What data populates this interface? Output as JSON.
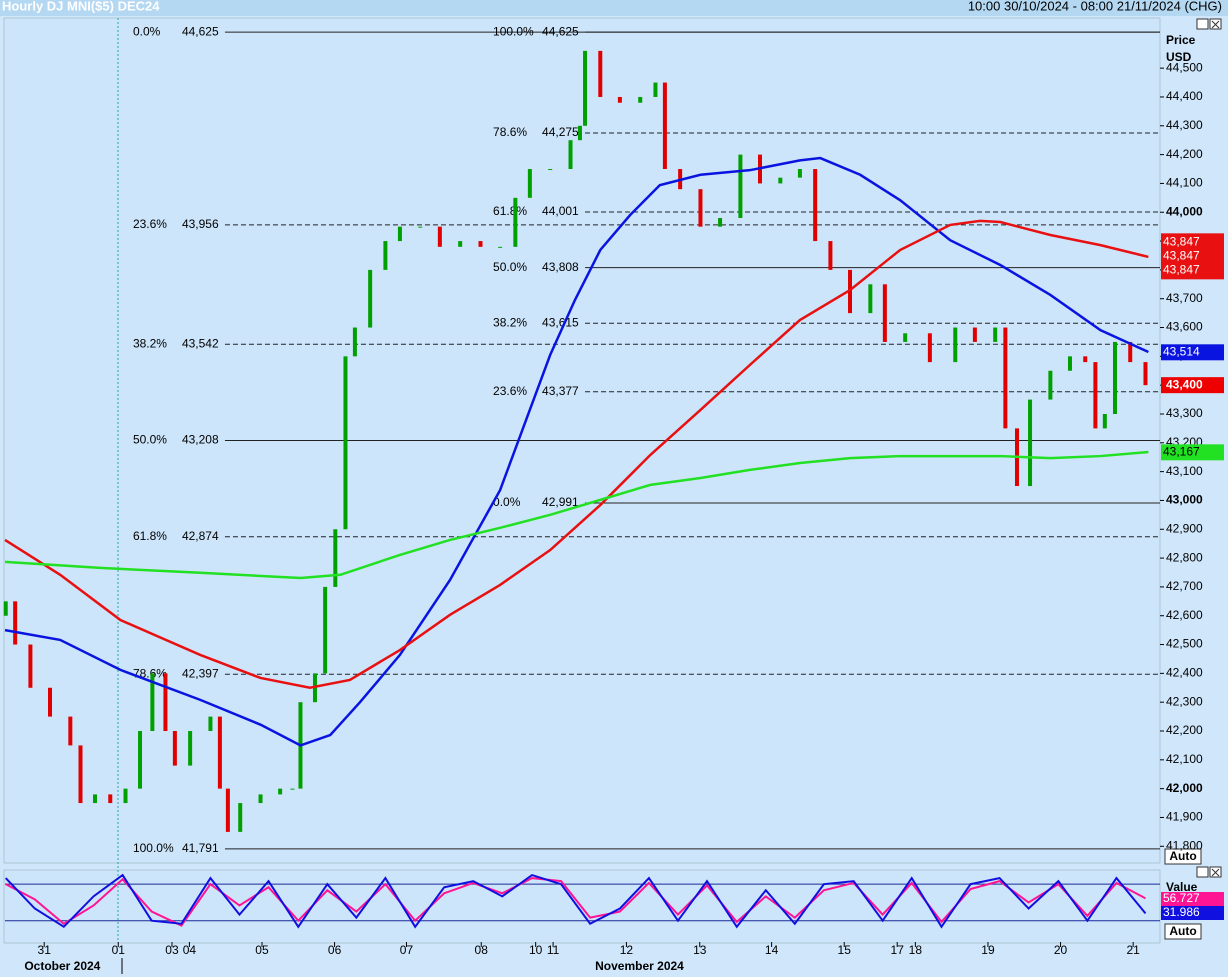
{
  "chart_data": [
    {
      "type": "candlestick",
      "title": "Hourly DJ MNI($5) DEC24",
      "subtitle": "10:00 30/10/2024 - 08:00 21/11/2024 (CHG)",
      "y_label": "Price",
      "y_unit": "USD",
      "auto_label": "Auto",
      "up_color": "#00a000",
      "down_color": "#e00000",
      "xlim": [
        -0.54,
        15.37
      ],
      "ylim": [
        41742,
        44674
      ],
      "xticks": [
        {
          "value": 0,
          "label": "31"
        },
        {
          "value": 1.02,
          "label": "01"
        },
        {
          "value": 1.76,
          "label": "03"
        },
        {
          "value": 2.0,
          "label": "04"
        },
        {
          "value": 3.0,
          "label": "05"
        },
        {
          "value": 4.0,
          "label": "06"
        },
        {
          "value": 4.99,
          "label": "07"
        },
        {
          "value": 6.02,
          "label": "08"
        },
        {
          "value": 6.77,
          "label": "10"
        },
        {
          "value": 7.01,
          "label": "11"
        },
        {
          "value": 8.02,
          "label": "12"
        },
        {
          "value": 9.03,
          "label": "13"
        },
        {
          "value": 10.02,
          "label": "14"
        },
        {
          "value": 11.02,
          "label": "15"
        },
        {
          "value": 11.75,
          "label": "17"
        },
        {
          "value": 12.0,
          "label": "18"
        },
        {
          "value": 13.0,
          "label": "19"
        },
        {
          "value": 14.0,
          "label": "20"
        },
        {
          "value": 15.0,
          "label": "21"
        }
      ],
      "month_ticks": [
        {
          "value": 0.25,
          "label": "October 2024"
        },
        {
          "value": 8.2,
          "label": "November 2024"
        }
      ],
      "yticks": [
        {
          "value": 41800,
          "label": "41,800"
        },
        {
          "value": 41900,
          "label": "41,900"
        },
        {
          "value": 42000,
          "label": "42,000"
        },
        {
          "value": 42100,
          "label": "42,100"
        },
        {
          "value": 42200,
          "label": "42,200"
        },
        {
          "value": 42300,
          "label": "42,300"
        },
        {
          "value": 42400,
          "label": "42,400"
        },
        {
          "value": 42500,
          "label": "42,500"
        },
        {
          "value": 42600,
          "label": "42,600"
        },
        {
          "value": 42700,
          "label": "42,700"
        },
        {
          "value": 42800,
          "label": "42,800"
        },
        {
          "value": 42900,
          "label": "42,900"
        },
        {
          "value": 43000,
          "label": "43,000"
        },
        {
          "value": 43100,
          "label": "43,100"
        },
        {
          "value": 43200,
          "label": "43,200"
        },
        {
          "value": 43300,
          "label": "43,300"
        },
        {
          "value": 43400,
          "label": "43,400"
        },
        {
          "value": 43500,
          "label": "43,500"
        },
        {
          "value": 43600,
          "label": "43,600"
        },
        {
          "value": 43700,
          "label": "43,700"
        },
        {
          "value": 43800,
          "label": "43,800"
        },
        {
          "value": 43900,
          "label": "43,900"
        },
        {
          "value": 44000,
          "label": "44,000"
        },
        {
          "value": 44100,
          "label": "44,100"
        },
        {
          "value": 44200,
          "label": "44,200"
        },
        {
          "value": 44300,
          "label": "44,300"
        },
        {
          "value": 44400,
          "label": "44,400"
        },
        {
          "value": 44500,
          "label": "44,500"
        }
      ],
      "x": [
        -0.53,
        -0.4,
        -0.19,
        0.08,
        0.36,
        0.5,
        0.7,
        0.91,
        1.12,
        1.32,
        1.49,
        1.67,
        1.8,
        2.01,
        2.29,
        2.42,
        2.53,
        2.7,
        2.98,
        3.25,
        3.42,
        3.53,
        3.73,
        3.87,
        4.01,
        4.15,
        4.28,
        4.49,
        4.7,
        4.9,
        5.18,
        5.45,
        5.73,
        6.01,
        6.28,
        6.49,
        6.69,
        6.97,
        7.25,
        7.38,
        7.45,
        7.66,
        7.93,
        8.21,
        8.42,
        8.55,
        8.76,
        9.04,
        9.31,
        9.59,
        9.86,
        10.14,
        10.41,
        10.62,
        10.83,
        11.1,
        11.38,
        11.58,
        11.86,
        12.2,
        12.55,
        12.82,
        13.1,
        13.24,
        13.4,
        13.58,
        13.86,
        14.13,
        14.34,
        14.48,
        14.61,
        14.75,
        14.96,
        15.17
      ],
      "open": [
        42600,
        42650,
        42500,
        42350,
        42250,
        42150,
        41950,
        41980,
        41950,
        42000,
        42200,
        42400,
        42200,
        42080,
        42200,
        42250,
        42000,
        41850,
        41950,
        41980,
        42000,
        42000,
        42300,
        42400,
        42700,
        42900,
        43500,
        43600,
        43800,
        43900,
        43950,
        43950,
        43880,
        43900,
        43880,
        43880,
        44050,
        44150,
        44150,
        44250,
        44300,
        44560,
        44400,
        44380,
        44400,
        44450,
        44150,
        44080,
        43950,
        43980,
        44200,
        44100,
        44120,
        44150,
        43900,
        43800,
        43650,
        43750,
        43550,
        43580,
        43480,
        43600,
        43550,
        43600,
        43250,
        43050,
        43350,
        43450,
        43500,
        43480,
        43250,
        43300,
        43550,
        43480
      ],
      "close": [
        42650,
        42500,
        42350,
        42250,
        42150,
        41950,
        41980,
        41950,
        42000,
        42200,
        42400,
        42200,
        42080,
        42200,
        42250,
        42000,
        41850,
        41950,
        41980,
        42000,
        42000,
        42300,
        42400,
        42700,
        42900,
        43500,
        43600,
        43800,
        43900,
        43950,
        43950,
        43880,
        43900,
        43880,
        43880,
        44050,
        44150,
        44150,
        44250,
        44300,
        44560,
        44400,
        44380,
        44400,
        44450,
        44150,
        44080,
        43950,
        43980,
        44200,
        44100,
        44120,
        44150,
        43900,
        43800,
        43650,
        43750,
        43550,
        43580,
        43480,
        43600,
        43550,
        43600,
        43250,
        43050,
        43350,
        43450,
        43500,
        43480,
        43250,
        43300,
        43550,
        43480,
        43400
      ],
      "moving_averages": [
        {
          "color": "#0a14e0",
          "x": [
            -0.54,
            0.22,
            1.05,
            2.15,
            2.98,
            3.53,
            3.94,
            4.35,
            4.9,
            5.59,
            6.28,
            6.97,
            7.31,
            7.66,
            8.07,
            8.48,
            9.04,
            9.72,
            10.41,
            10.69,
            11.24,
            11.79,
            12.48,
            13.17,
            13.86,
            14.55,
            15.21
          ],
          "values": [
            42550,
            42516,
            42412,
            42308,
            42222,
            42150,
            42186,
            42300,
            42464,
            42724,
            43036,
            43505,
            43695,
            43869,
            43990,
            44094,
            44130,
            44146,
            44180,
            44188,
            44130,
            44042,
            43903,
            43817,
            43713,
            43591,
            43515
          ],
          "last": {
            "value": 43514,
            "label": "43,514"
          }
        },
        {
          "color": "#e81010",
          "x": [
            -0.54,
            0.22,
            1.05,
            2.15,
            2.98,
            3.66,
            4.21,
            4.9,
            5.59,
            6.28,
            6.97,
            7.66,
            8.35,
            9.04,
            9.72,
            10.41,
            11.1,
            11.79,
            12.48,
            12.89,
            13.17,
            13.86,
            14.55,
            15.21
          ],
          "values": [
            42863,
            42742,
            42585,
            42464,
            42384,
            42350,
            42377,
            42481,
            42603,
            42707,
            42828,
            42984,
            43158,
            43314,
            43470,
            43626,
            43730,
            43869,
            43956,
            43970,
            43966,
            43921,
            43886,
            43845
          ],
          "last": {
            "value": 43847,
            "label": "43,847"
          }
        },
        {
          "color": "#22e022",
          "x": [
            -0.54,
            0.77,
            2.15,
            3.53,
            4.08,
            4.9,
            5.59,
            6.28,
            6.97,
            7.66,
            8.35,
            9.04,
            9.72,
            10.41,
            11.1,
            11.79,
            13.17,
            13.86,
            14.55,
            15.21
          ],
          "values": [
            42787,
            42766,
            42749,
            42731,
            42742,
            42811,
            42863,
            42905,
            42950,
            43002,
            43054,
            43078,
            43106,
            43130,
            43147,
            43154,
            43154,
            43147,
            43154,
            43168
          ],
          "last": {
            "value": 43167,
            "label": "43,167"
          }
        }
      ],
      "fib_sets": [
        {
          "start_x": 2.49,
          "levels": [
            {
              "percent": "0.0%",
              "value": 44625,
              "label": "44,625",
              "style": "solid"
            },
            {
              "percent": "23.6%",
              "value": 43956,
              "label": "43,956",
              "style": "dashed"
            },
            {
              "percent": "38.2%",
              "value": 43542,
              "label": "43,542",
              "style": "dashed"
            },
            {
              "percent": "50.0%",
              "value": 43208,
              "label": "43,208",
              "style": "solid"
            },
            {
              "percent": "61.8%",
              "value": 42874,
              "label": "42,874",
              "style": "dashed"
            },
            {
              "percent": "78.6%",
              "value": 42397,
              "label": "42,397",
              "style": "dashed"
            },
            {
              "percent": "100.0%",
              "value": 41791,
              "label": "41,791",
              "style": "solid"
            }
          ]
        },
        {
          "start_x": 7.45,
          "levels": [
            {
              "percent": "100.0%",
              "value": 44625,
              "label": "44,625",
              "style": "solid"
            },
            {
              "percent": "78.6%",
              "value": 44275,
              "label": "44,275",
              "style": "dashed"
            },
            {
              "percent": "61.8%",
              "value": 44001,
              "label": "44,001",
              "style": "dashed"
            },
            {
              "percent": "50.0%",
              "value": 43808,
              "label": "43,808",
              "style": "solid"
            },
            {
              "percent": "38.2%",
              "value": 43615,
              "label": "43,615",
              "style": "dashed"
            },
            {
              "percent": "23.6%",
              "value": 43377,
              "label": "43,377",
              "style": "dashed"
            },
            {
              "percent": "0.0%",
              "value": 42991,
              "label": "42,991",
              "style": "solid"
            }
          ]
        }
      ],
      "last_price": {
        "value": 43400,
        "label": "43,400",
        "color": "#ee0000"
      }
    },
    {
      "type": "line",
      "value_label": "Value",
      "auto_label": "Auto",
      "ylim": [
        -15,
        100
      ],
      "levels": [
        20,
        80
      ],
      "x": [
        -0.53,
        -0.13,
        0.27,
        0.68,
        1.08,
        1.48,
        1.89,
        2.29,
        2.69,
        3.09,
        3.5,
        3.9,
        4.3,
        4.7,
        5.11,
        5.51,
        5.91,
        6.31,
        6.72,
        7.12,
        7.52,
        7.93,
        8.33,
        8.73,
        9.13,
        9.54,
        9.94,
        10.34,
        10.74,
        11.15,
        11.55,
        11.95,
        12.36,
        12.76,
        13.16,
        13.56,
        13.97,
        14.37,
        14.77,
        15.17
      ],
      "series": [
        {
          "color": "#ff1493",
          "values": [
            80,
            55,
            15,
            45,
            88,
            35,
            12,
            80,
            45,
            75,
            20,
            70,
            35,
            80,
            20,
            65,
            82,
            65,
            90,
            85,
            25,
            35,
            82,
            30,
            78,
            18,
            60,
            25,
            70,
            82,
            30,
            82,
            18,
            72,
            85,
            50,
            80,
            28,
            82,
            56.727
          ]
        },
        {
          "color": "#1010e0",
          "values": [
            90,
            40,
            10,
            60,
            95,
            20,
            15,
            90,
            30,
            85,
            10,
            80,
            25,
            90,
            10,
            75,
            85,
            60,
            95,
            80,
            15,
            40,
            90,
            20,
            85,
            10,
            70,
            15,
            80,
            85,
            20,
            90,
            10,
            80,
            90,
            40,
            85,
            20,
            90,
            31.986
          ]
        }
      ]
    }
  ]
}
